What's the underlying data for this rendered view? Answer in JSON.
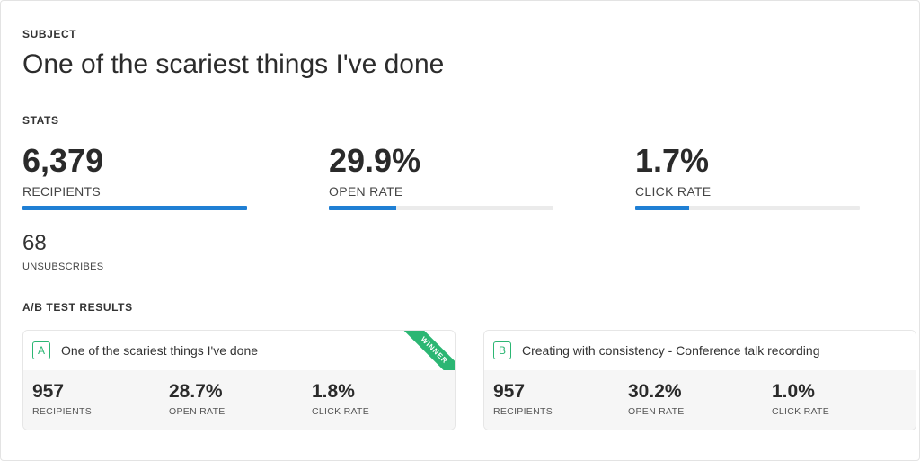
{
  "subject": {
    "label": "SUBJECT",
    "title": "One of the scariest things I've done"
  },
  "stats": {
    "label": "STATS",
    "bar_color": "#1f7fd4",
    "items": [
      {
        "value": "6,379",
        "label": "RECIPIENTS",
        "progress": 1.0
      },
      {
        "value": "29.9%",
        "label": "OPEN RATE",
        "progress": 0.299
      },
      {
        "value": "1.7%",
        "label": "CLICK RATE",
        "progress": 0.24
      }
    ],
    "unsubscribes": {
      "value": "68",
      "label": "UNSUBSCRIBES"
    }
  },
  "ab_test": {
    "label": "A/B TEST RESULTS",
    "accent_color": "#2bb673",
    "variants": [
      {
        "letter": "A",
        "subject": "One of the scariest things I've done",
        "badge": "WINNER",
        "stats": [
          {
            "value": "957",
            "label": "RECIPIENTS"
          },
          {
            "value": "28.7%",
            "label": "OPEN RATE"
          },
          {
            "value": "1.8%",
            "label": "CLICK RATE"
          }
        ]
      },
      {
        "letter": "B",
        "subject": "Creating with consistency - Conference talk recording",
        "stats": [
          {
            "value": "957",
            "label": "RECIPIENTS"
          },
          {
            "value": "30.2%",
            "label": "OPEN RATE"
          },
          {
            "value": "1.0%",
            "label": "CLICK RATE"
          }
        ]
      }
    ]
  }
}
